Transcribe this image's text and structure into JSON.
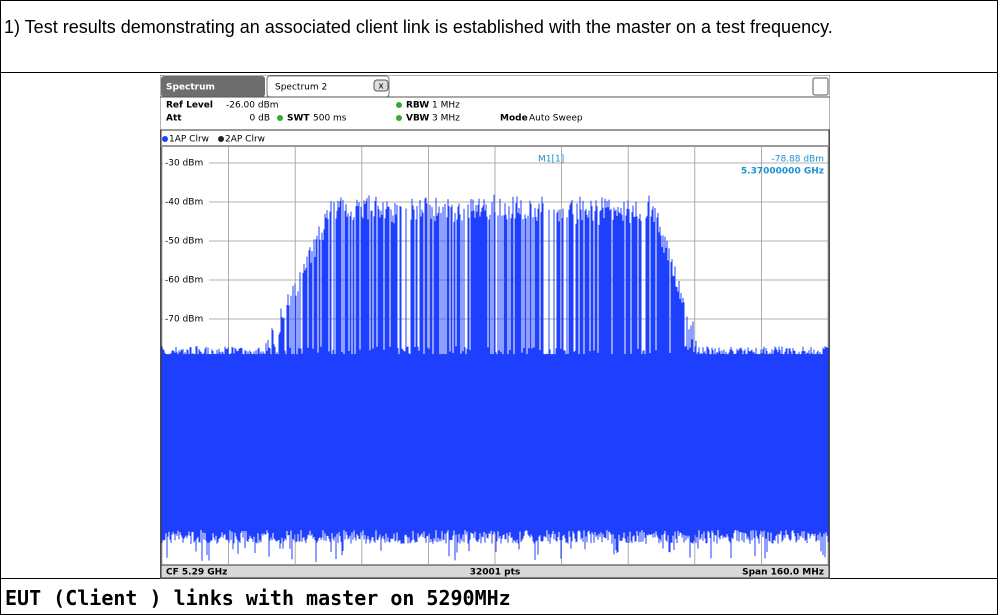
{
  "header": {
    "text": "1) Test results demonstrating an associated client link is established with the master on a test frequency."
  },
  "screenshot": {
    "tabs": [
      "Spectrum",
      "Spectrum 2"
    ],
    "ref_level_label": "Ref Level",
    "ref_level": "-26.00 dBm",
    "att_label": "Att",
    "att": "0 dB",
    "swt_label": "SWT",
    "swt": "500 ms",
    "rbw_label": "RBW",
    "rbw": "1 MHz",
    "vbw_label": "VBW",
    "vbw": "3 MHz",
    "mode_label": "Mode",
    "mode": "Auto Sweep",
    "traces": [
      "1AP Clrw",
      "2AP Clrw"
    ],
    "marker": "M1[1]",
    "marker_level": "-78.88 dBm",
    "marker_freq": "5.37000000 GHz",
    "y_labels": [
      "-30 dBm",
      "-40 dBm",
      "-50 dBm",
      "-60 dBm",
      "-70 dBm"
    ],
    "center": "CF 5.29 GHz",
    "points": "32001 pts",
    "span": "Span 160.0 MHz"
  },
  "caption": "EUT (Client ) links with master on 5290MHz"
}
